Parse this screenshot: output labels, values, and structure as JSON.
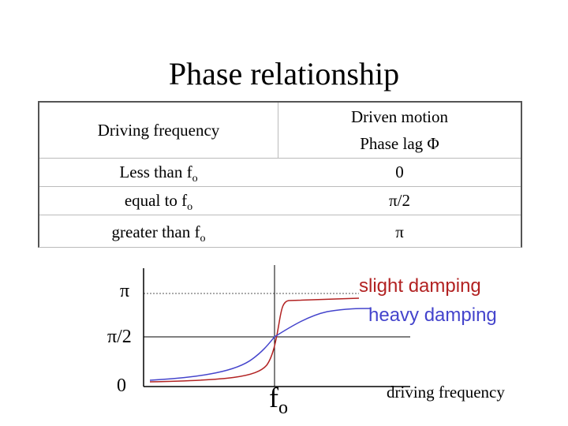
{
  "title": "Phase relationship",
  "table": {
    "header_left": "Driving frequency",
    "header_right_line1": "Driven motion",
    "header_right_line2": "Phase lag Φ",
    "rows": [
      {
        "driving": "Less than f",
        "sub": "o",
        "phase": "0"
      },
      {
        "driving": "equal to f",
        "sub": "o",
        "phase": "π/2"
      },
      {
        "driving": "greater than f",
        "sub": "o",
        "phase": "π"
      }
    ]
  },
  "graph": {
    "y_labels": {
      "pi": "π",
      "half_pi": "π/2",
      "zero": "0"
    },
    "x_marker": "f",
    "x_marker_sub": "o",
    "x_label": "driving frequency",
    "legend": {
      "slight": "slight damping",
      "heavy": "heavy damping"
    },
    "colors": {
      "slight": "#b22222",
      "heavy": "#4444cc",
      "axes": "#000000",
      "guide": "#555555"
    }
  }
}
